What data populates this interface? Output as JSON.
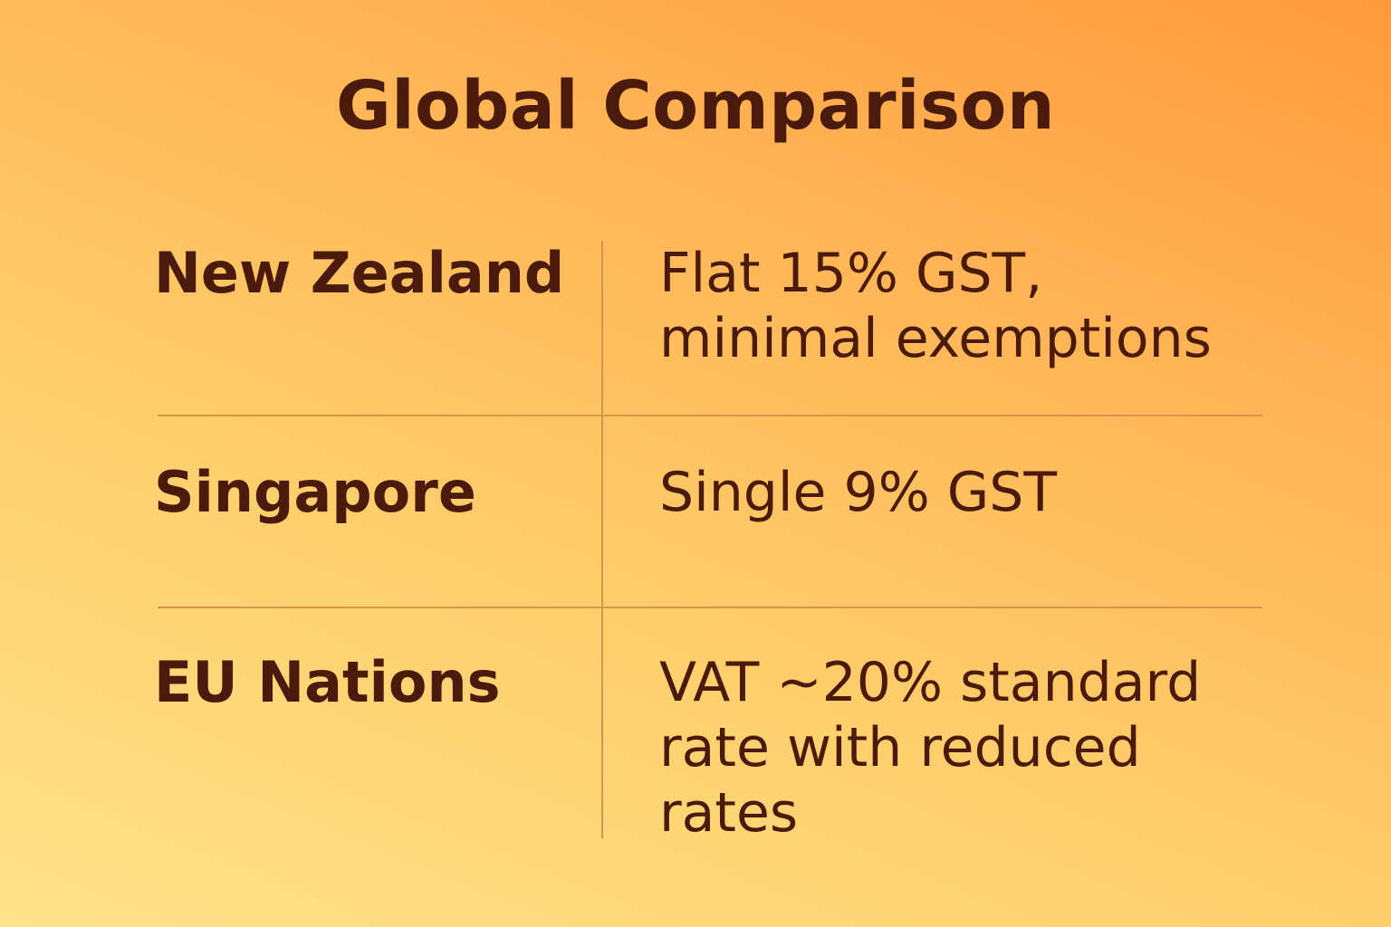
{
  "title": "Global Comparison",
  "rows": [
    {
      "country": "New Zealand",
      "description": "Flat 15% GST, minimal exemptions"
    },
    {
      "country": "Singapore",
      "description": "Single 9% GST"
    },
    {
      "country": "EU Nations",
      "description": "VAT ~20% standard rate with reduced rates"
    }
  ],
  "colors": {
    "text": "#4a1a0c",
    "divider": "#d8954a",
    "gradient_start": "#ffe28a",
    "gradient_end": "#ff9a3c"
  }
}
